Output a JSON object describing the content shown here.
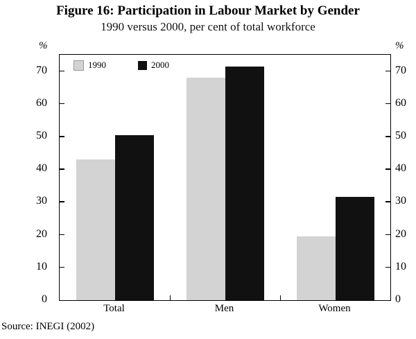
{
  "figure": {
    "title": "Figure 16: Participation in Labour Market by Gender",
    "subtitle": "1990 versus 2000, per cent of total workforce",
    "source": "Source: INEGI (2002)",
    "percent_label": "%"
  },
  "chart_data": {
    "type": "bar",
    "categories": [
      "Total",
      "Men",
      "Women"
    ],
    "series": [
      {
        "name": "1990",
        "color": "#d3d3d3",
        "values": [
          43,
          68,
          19.5
        ]
      },
      {
        "name": "2000",
        "color": "#111111",
        "values": [
          50.5,
          71.5,
          31.5
        ]
      }
    ],
    "ylabel": "%",
    "ylim": [
      0,
      75
    ],
    "yticks": [
      0,
      10,
      20,
      30,
      40,
      50,
      60,
      70
    ],
    "grid": false,
    "legend_position": "top-left-inside"
  }
}
